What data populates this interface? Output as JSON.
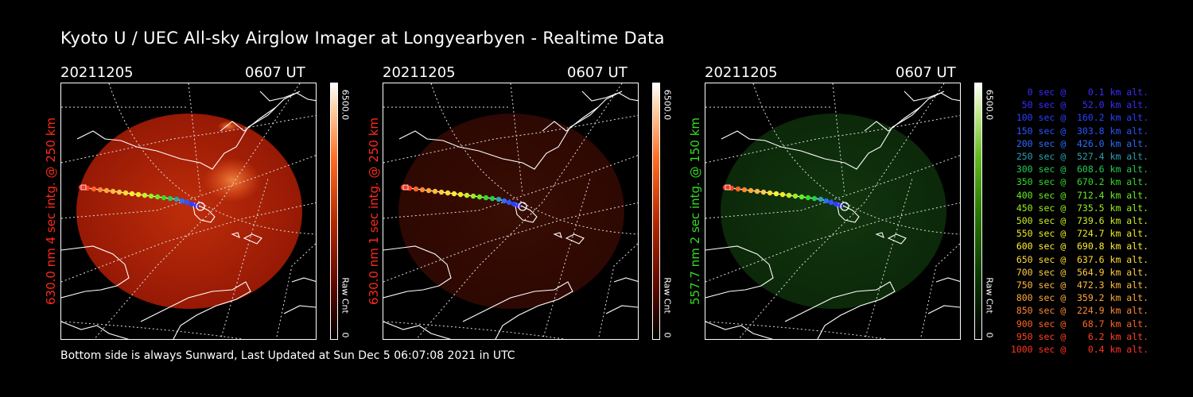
{
  "title": "Kyoto U / UEC All-sky Airglow Imager at Longyearbyen - Realtime Data",
  "footer": "Bottom side is always Sunward, Last Updated at Sun Dec  5 06:07:08 2021 in UTC",
  "panels": [
    {
      "date": "20211205",
      "time": "0607 UT",
      "side_label": "630.0 nm  4 sec intg. @ 250 km",
      "side_color": "#ff2a1a",
      "cbar_top": "6500.0",
      "cbar_mid": "Raw Cnt",
      "cbar_bottom": "0",
      "glow": "red",
      "intensity": 1.0
    },
    {
      "date": "20211205",
      "time": "0607 UT",
      "side_label": "630.0 nm  1 sec intg. @ 250 km",
      "side_color": "#ff2a1a",
      "cbar_top": "6500.0",
      "cbar_mid": "Raw Cnt",
      "cbar_bottom": "0",
      "glow": "red",
      "intensity": 0.3
    },
    {
      "date": "20211205",
      "time": "0607 UT",
      "side_label": "557.7 nm  2 sec intg. @ 150 km",
      "side_color": "#33dd22",
      "cbar_top": "6500.0",
      "cbar_mid": "Raw Cnt",
      "cbar_bottom": "0",
      "glow": "green",
      "intensity": 0.45
    }
  ],
  "legend": [
    {
      "text": "   0 sec @    0.1 km alt.",
      "color": "#3a2cff"
    },
    {
      "text": "  50 sec @   52.0 km alt.",
      "color": "#3a2cff"
    },
    {
      "text": " 100 sec @  160.2 km alt.",
      "color": "#2a40ff"
    },
    {
      "text": " 150 sec @  303.8 km alt.",
      "color": "#2a55ff"
    },
    {
      "text": " 200 sec @  426.0 km alt.",
      "color": "#2a6cff"
    },
    {
      "text": " 250 sec @  527.4 km alt.",
      "color": "#2ca0b0"
    },
    {
      "text": " 300 sec @  608.6 km alt.",
      "color": "#22cc55"
    },
    {
      "text": " 350 sec @  670.2 km alt.",
      "color": "#33dd22"
    },
    {
      "text": " 400 sec @  712.4 km alt.",
      "color": "#66ee22"
    },
    {
      "text": " 450 sec @  735.5 km alt.",
      "color": "#99ee22"
    },
    {
      "text": " 500 sec @  739.6 km alt.",
      "color": "#ccee22"
    },
    {
      "text": " 550 sec @  724.7 km alt.",
      "color": "#eeee22"
    },
    {
      "text": " 600 sec @  690.8 km alt.",
      "color": "#ffee33"
    },
    {
      "text": " 650 sec @  637.6 km alt.",
      "color": "#ffdd33"
    },
    {
      "text": " 700 sec @  564.9 km alt.",
      "color": "#ffcc44"
    },
    {
      "text": " 750 sec @  472.3 km alt.",
      "color": "#ffbb44"
    },
    {
      "text": " 800 sec @  359.2 km alt.",
      "color": "#ffaa33"
    },
    {
      "text": " 850 sec @  224.9 km alt.",
      "color": "#ff8833"
    },
    {
      "text": " 900 sec @   68.7 km alt.",
      "color": "#ff6622"
    },
    {
      "text": " 950 sec @    6.2 km alt.",
      "color": "#ff4422"
    },
    {
      "text": "1000 sec @    0.4 km alt.",
      "color": "#ff3322"
    }
  ]
}
